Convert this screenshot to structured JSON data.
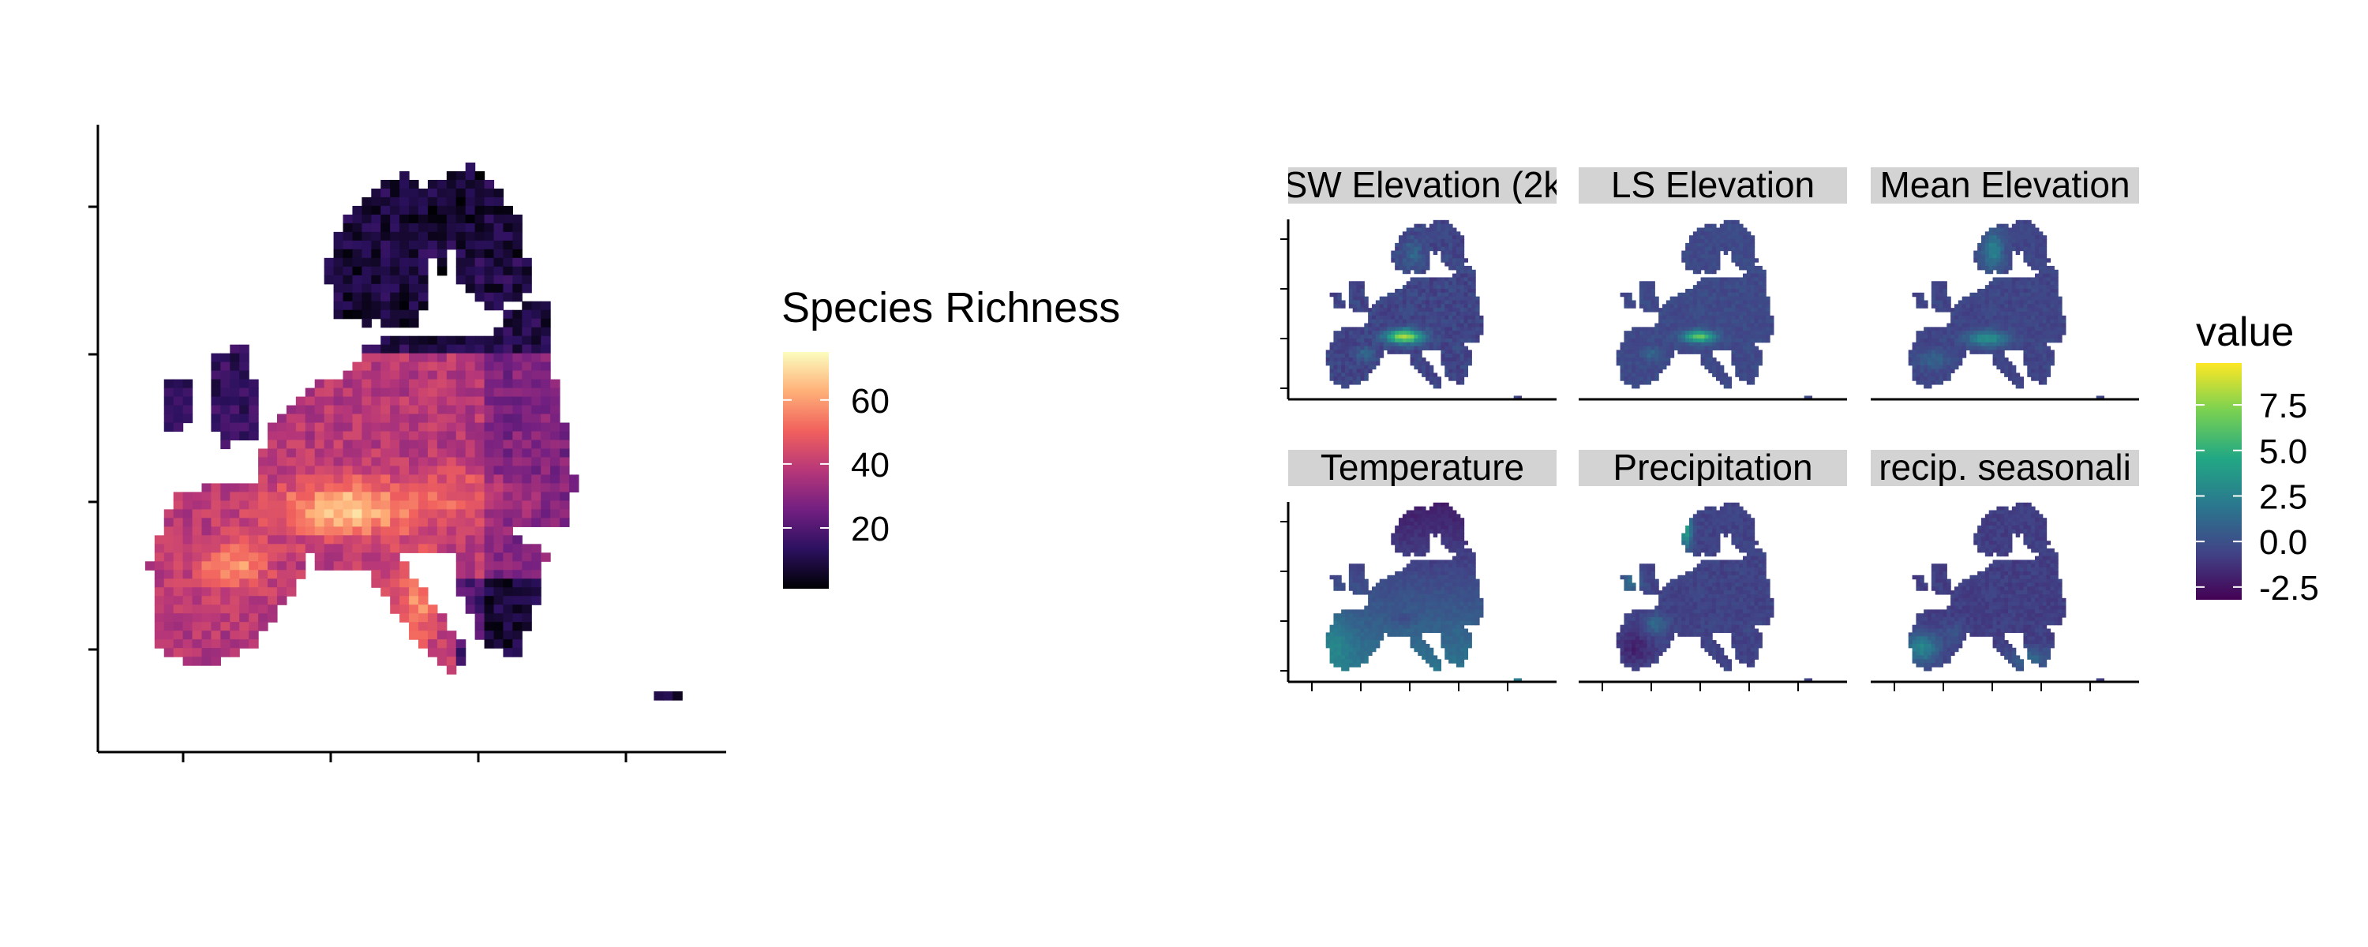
{
  "chart_data": [
    {
      "type": "heatmap",
      "title": "",
      "xlabel": "",
      "ylabel": "",
      "grid": false,
      "x_ticks": 4,
      "y_ticks": 4,
      "legend": {
        "title": "Species Richness",
        "position": "right",
        "ticks": [
          20,
          40,
          60
        ],
        "range": [
          1,
          75
        ],
        "colorscale": [
          "#000004",
          "#2c115f",
          "#721f81",
          "#b73779",
          "#f1605d",
          "#feb078",
          "#fcfdbf"
        ]
      },
      "region": "Europe",
      "cell_grid": "regular grid cells over Europe",
      "pattern": "low richness (<20) in Scandinavia, Finland and the Baltics; moderate-to-high (35-60) across central and southern Europe; peak values (~70) in the Alps, Pyrenees and Apennines"
    },
    {
      "type": "heatmap",
      "facets": [
        {
          "label": "SW Elevation (2k",
          "description": "peaks along the Alps (~6-9); near 0 elsewhere"
        },
        {
          "label": "LS Elevation",
          "description": "peaks in the Alps (~7); near 0 elsewhere"
        },
        {
          "label": "Mean Elevation",
          "description": "higher in the Alps and Scandinavian mountains (~3-5); low (~0) in plains"
        },
        {
          "label": "Temperature",
          "description": "cold (~-2) in northern Scandinavia; warm (~2-4) on the Mediterranean and Atlantic coasts"
        },
        {
          "label": "Precipitation",
          "description": "high (~3-5) on the Norwegian coast and Atlantic margins; low (~-1) in Iberia and the east"
        },
        {
          "label": "recip. seasonali",
          "description": "high (~3-4) in Iberia and the Mediterranean; low (~-1) in the interior"
        }
      ],
      "legend": {
        "title": "value",
        "position": "right",
        "ticks": [
          7.5,
          5.0,
          2.5,
          0.0,
          -2.5
        ],
        "range": [
          -3.2,
          9.8
        ],
        "colorscale": [
          "#440154",
          "#414487",
          "#2a788e",
          "#22a884",
          "#7ad151",
          "#fde725"
        ]
      },
      "x_ticks": 5,
      "y_ticks": 4,
      "grid": false
    }
  ]
}
